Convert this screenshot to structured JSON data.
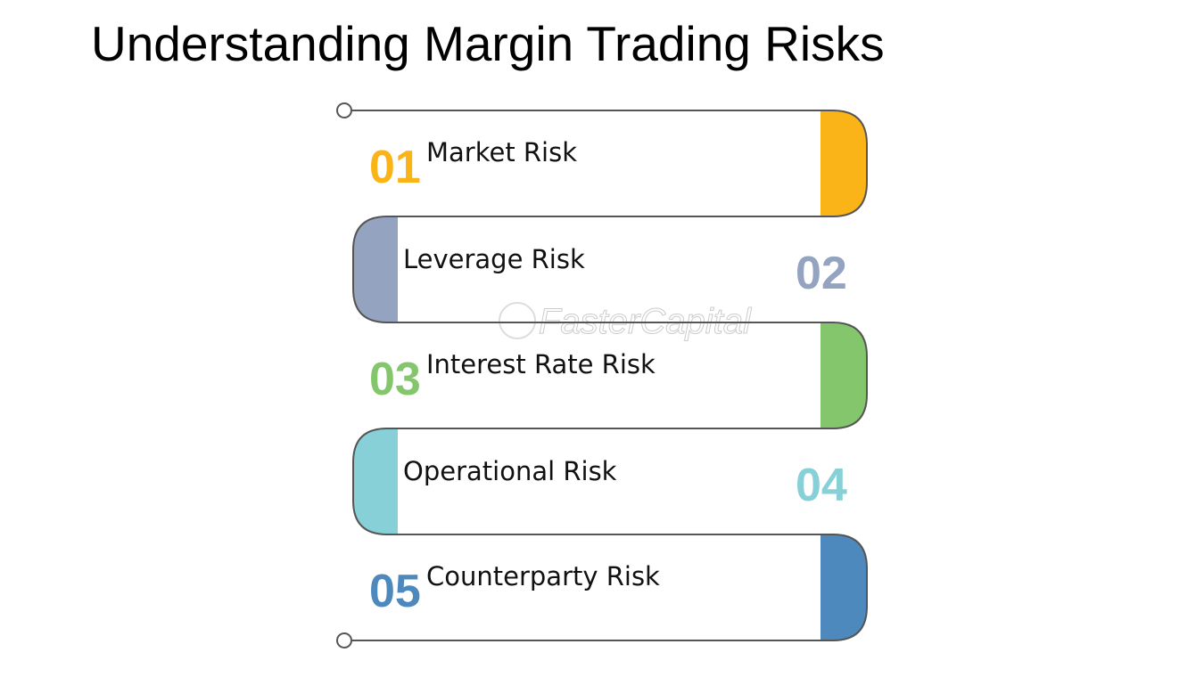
{
  "title": "Understanding Margin Trading Risks",
  "watermark": "FasterCapital",
  "items": [
    {
      "number": "01",
      "label": "Market Risk",
      "color": "#fbb418"
    },
    {
      "number": "02",
      "label": "Leverage Risk",
      "color": "#93a3c0"
    },
    {
      "number": "03",
      "label": "Interest Rate Risk",
      "color": "#84c66c"
    },
    {
      "number": "04",
      "label": "Operational Risk",
      "color": "#87d0d8"
    },
    {
      "number": "05",
      "label": "Counterparty Risk",
      "color": "#4e89bd"
    }
  ]
}
